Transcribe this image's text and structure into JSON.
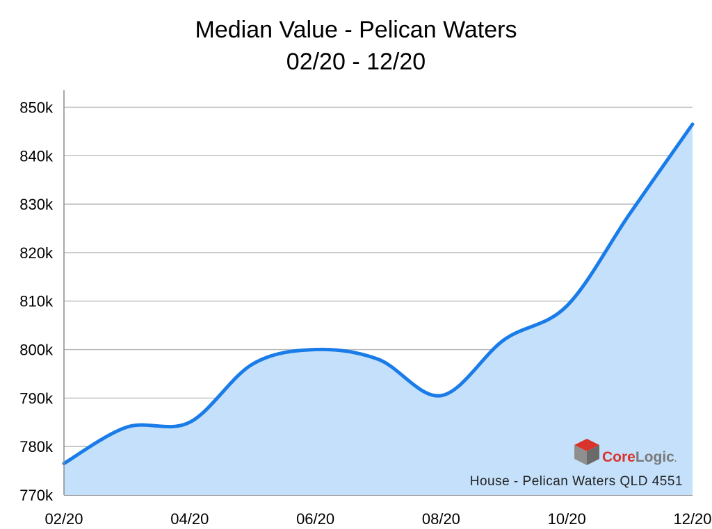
{
  "chart_data": {
    "type": "area",
    "title": "Median Value - Pelican Waters",
    "subtitle": "02/20 - 12/20",
    "xlabel": "",
    "ylabel": "",
    "x_tick_labels": [
      "02/20",
      "04/20",
      "06/20",
      "08/20",
      "10/20",
      "12/20"
    ],
    "y_tick_labels": [
      "770k",
      "780k",
      "790k",
      "800k",
      "810k",
      "820k",
      "830k",
      "840k",
      "850k"
    ],
    "ylim": [
      770000,
      853500
    ],
    "grid": true,
    "series": [
      {
        "x": [
          0,
          1,
          2,
          3,
          4,
          5,
          6,
          7,
          8,
          9,
          10
        ],
        "values": [
          776500,
          784000,
          785000,
          797000,
          800000,
          798000,
          790500,
          802000,
          809000,
          828000,
          846500
        ]
      }
    ],
    "caption": "House - Pelican Waters QLD 4551",
    "brand": {
      "core": "Core",
      "logic": "Logic",
      "mark": "."
    },
    "colors": {
      "line": "#1a7ce8",
      "fill": "#c4e0fb",
      "grid": "#b5b5b5",
      "axis": "#8c8c8c",
      "brand_core": "#d9342b",
      "brand_logic": "#7a7a7a"
    }
  }
}
